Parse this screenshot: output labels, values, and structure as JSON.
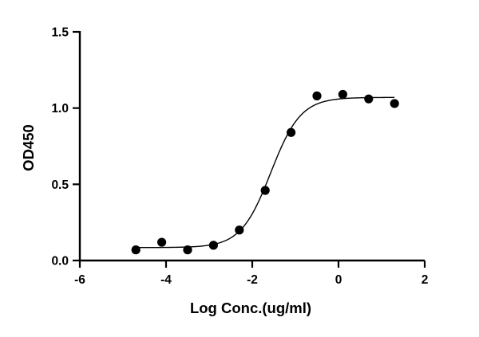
{
  "chart_data": {
    "type": "scatter",
    "title": "",
    "xlabel": "Log Conc.(ug/ml)",
    "ylabel": "OD450",
    "xlim": [
      -6,
      2
    ],
    "ylim": [
      0,
      1.5
    ],
    "x_ticks": [
      "-6",
      "-4",
      "-2",
      "0",
      "2"
    ],
    "y_ticks": [
      "0.0",
      "0.5",
      "1.0",
      "1.5"
    ],
    "grid": false,
    "legend": "none",
    "series": [
      {
        "points": [
          {
            "x": -4.7,
            "y": 0.07
          },
          {
            "x": -4.1,
            "y": 0.12
          },
          {
            "x": -3.5,
            "y": 0.07
          },
          {
            "x": -2.9,
            "y": 0.1
          },
          {
            "x": -2.3,
            "y": 0.2
          },
          {
            "x": -1.7,
            "y": 0.46
          },
          {
            "x": -1.1,
            "y": 0.84
          },
          {
            "x": -0.5,
            "y": 1.08
          },
          {
            "x": 0.1,
            "y": 1.09
          },
          {
            "x": 0.7,
            "y": 1.06
          },
          {
            "x": 1.3,
            "y": 1.03
          }
        ],
        "fit": {
          "model": "4PL",
          "bottom": 0.085,
          "top": 1.07,
          "logEC50": -1.57,
          "hill": 1.25,
          "x_range": [
            -4.7,
            1.3
          ]
        },
        "color": "#000000"
      }
    ]
  }
}
